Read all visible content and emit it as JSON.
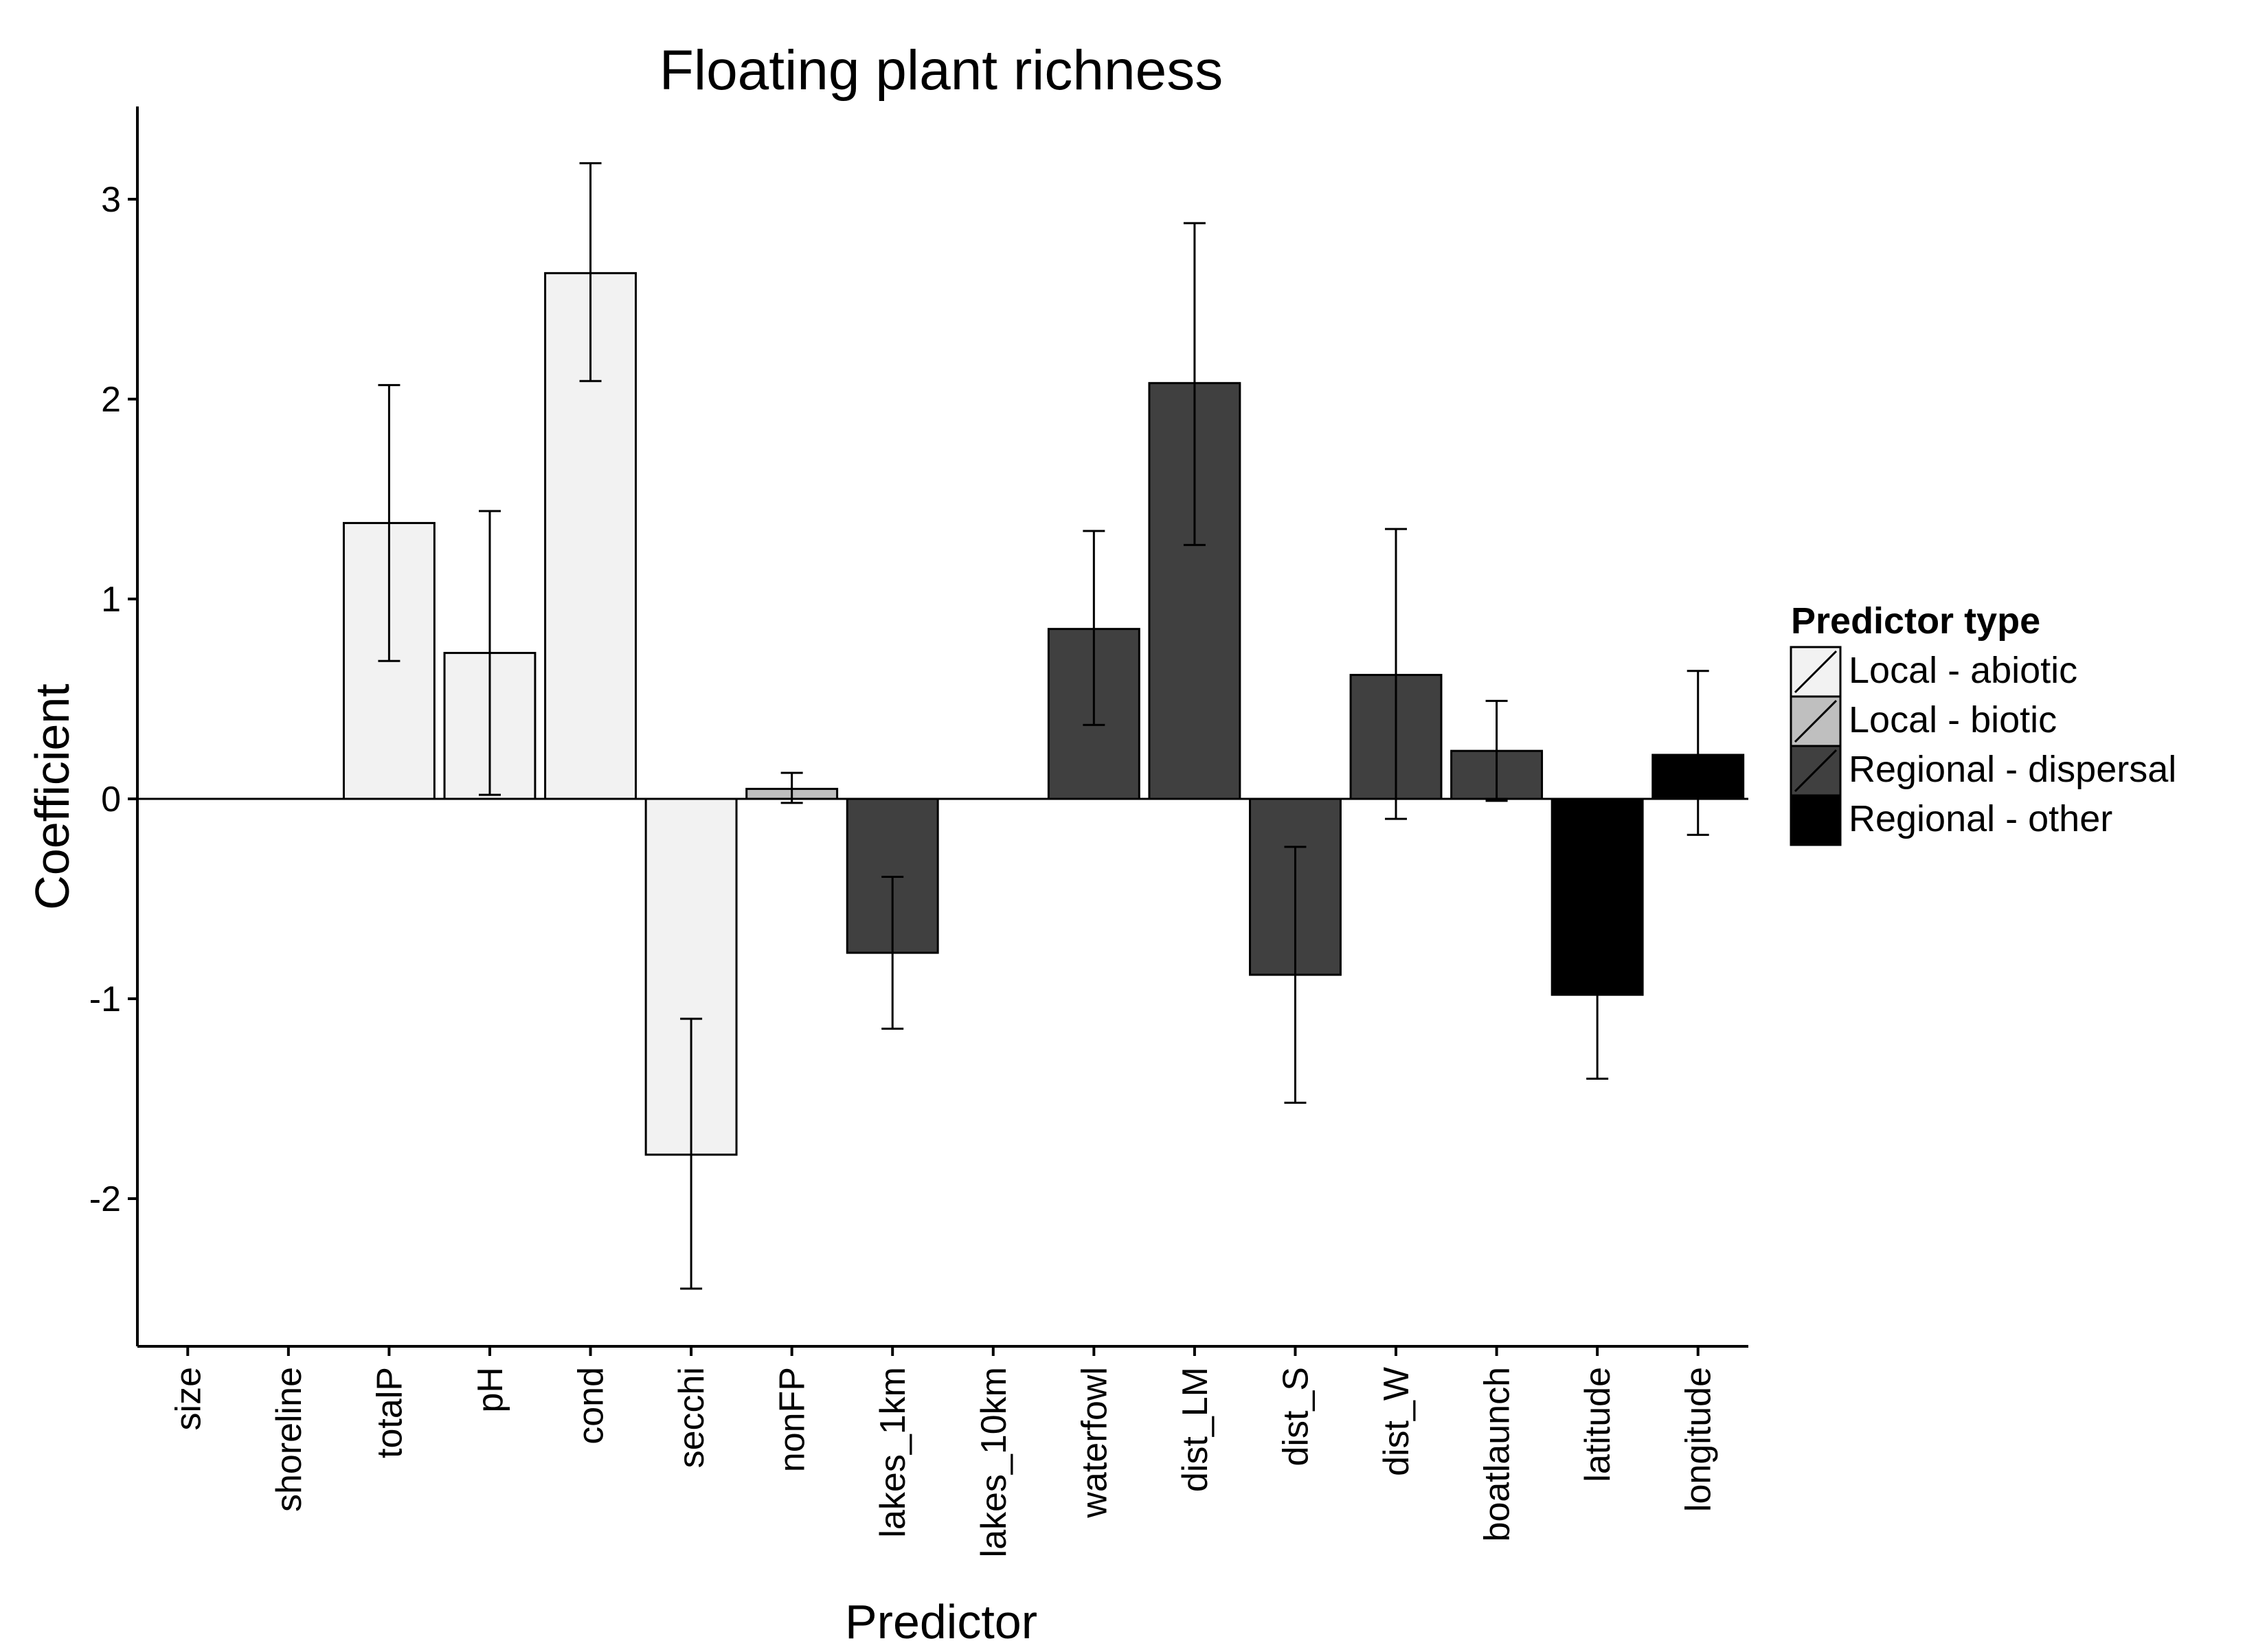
{
  "chart_data": {
    "type": "bar",
    "title": "Floating plant richness",
    "xlabel": "Predictor",
    "ylabel": "Coefficient",
    "ylim": [
      -2.75,
      3.45
    ],
    "yticks": [
      -2,
      -1,
      0,
      1,
      2,
      3
    ],
    "categories": [
      "size",
      "shoreline",
      "totalP",
      "pH",
      "cond",
      "secchi",
      "nonFP",
      "lakes_1km",
      "lakes_10km",
      "waterfowl",
      "dist_LM",
      "dist_S",
      "dist_W",
      "boatlaunch",
      "latitude",
      "longitude"
    ],
    "values": [
      null,
      null,
      1.38,
      0.73,
      2.63,
      -1.78,
      0.05,
      -0.77,
      null,
      0.85,
      2.08,
      -0.88,
      0.62,
      0.24,
      -0.98,
      0.22
    ],
    "error_low": [
      null,
      null,
      0.69,
      0.02,
      2.09,
      -2.45,
      -0.02,
      -1.15,
      null,
      0.37,
      1.27,
      -1.52,
      -0.1,
      -0.01,
      -1.4,
      -0.18
    ],
    "error_high": [
      null,
      null,
      2.07,
      1.44,
      3.18,
      -1.1,
      0.13,
      -0.39,
      null,
      1.34,
      2.88,
      -0.24,
      1.35,
      0.49,
      -0.56,
      0.64
    ],
    "types": [
      null,
      null,
      "Local - abiotic",
      "Local - abiotic",
      "Local - abiotic",
      "Local - abiotic",
      "Local - biotic",
      "Regional - dispersal",
      null,
      "Regional - dispersal",
      "Regional - dispersal",
      "Regional - dispersal",
      "Regional - dispersal",
      "Regional - dispersal",
      "Regional - other",
      "Regional - other"
    ],
    "legend": {
      "title": "Predictor type",
      "position": "right",
      "items": [
        {
          "label": "Local - abiotic",
          "color": "#f2f2f2"
        },
        {
          "label": "Local - biotic",
          "color": "#bfbfbf"
        },
        {
          "label": "Regional - dispersal",
          "color": "#404040"
        },
        {
          "label": "Regional - other",
          "color": "#000000"
        }
      ]
    },
    "grid": false
  }
}
